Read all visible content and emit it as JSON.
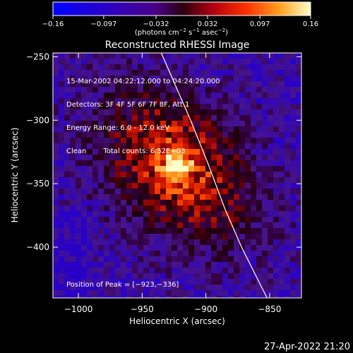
{
  "chart_data": {
    "type": "heatmap",
    "title": "Reconstructed RHESSI Image",
    "xlabel": "Heliocentric X (arcsec)",
    "ylabel": "Heliocentric Y (arcsec)",
    "xlim": [
      -1020,
      -825
    ],
    "ylim": [
      -440,
      -247
    ],
    "xticks": [
      -1000,
      -950,
      -900,
      -850
    ],
    "yticks": [
      -250,
      -300,
      -350,
      -400
    ],
    "xtick_labels": [
      "−1000",
      "−950",
      "−900",
      "−850"
    ],
    "ytick_labels": [
      "−250",
      "−300",
      "−350",
      "−400"
    ],
    "peak": [
      -923,
      -336
    ],
    "colorbar": {
      "range": [
        -0.16,
        0.16
      ],
      "ticks": [
        -0.16,
        -0.097,
        -0.032,
        0.032,
        0.097,
        0.16
      ],
      "tick_labels": [
        "−0.16",
        "−0.097",
        "−0.032",
        "0.032",
        "0.097",
        "0.16"
      ],
      "units_base": "(photons cm",
      "units_exp1": "−2",
      "units_mid": " s",
      "units_exp2": "−1",
      "units_end": " asec",
      "units_exp3": "−2",
      "units_close": ")"
    },
    "limb_curve": [
      [
        -935,
        -247
      ],
      [
        -925,
        -270
      ],
      [
        -912,
        -300
      ],
      [
        -898,
        -335
      ],
      [
        -885,
        -370
      ],
      [
        -872,
        -400
      ],
      [
        -857,
        -430
      ],
      [
        -852,
        -440
      ]
    ]
  },
  "annotations": {
    "time_range": "15-Mar-2002 04:22:12.000 to 04:24:20.000",
    "detectors": "Detectors: 3F 4F 5F 6F 7F 8F, Att 1",
    "energy": "Energy Range: 6.0 - 12.0 keV",
    "clean": "Clean",
    "counts": "Total counts: 6.52E+03",
    "peak_label": "Position of Peak = [−923,−336]"
  },
  "footer_timestamp": "27-Apr-2022 21:20"
}
